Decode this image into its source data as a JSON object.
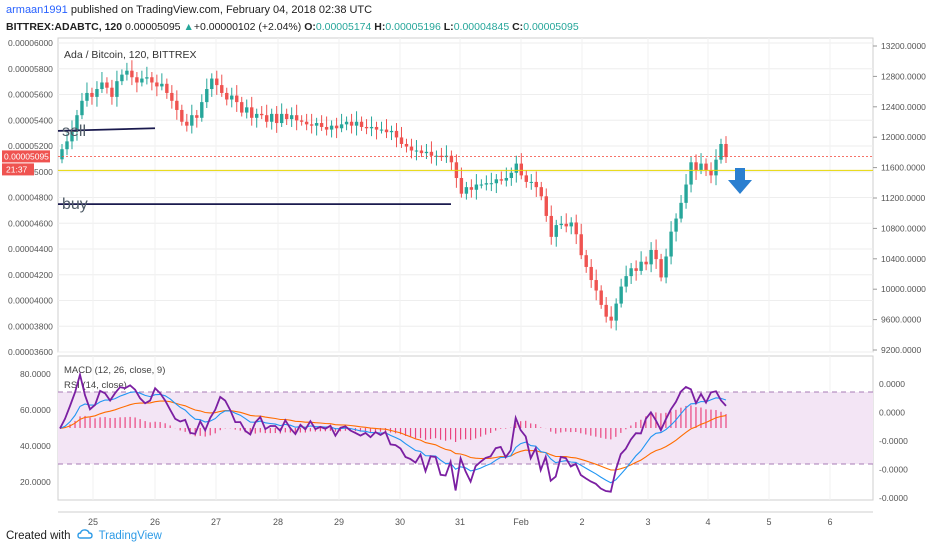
{
  "header": {
    "user": "armaan1991",
    "published": "published on TradingView.com, February 04, 2018 02:38 UTC",
    "symbol": "BITTREX:ADABTC, 120",
    "last": "0.00005095",
    "change": "+0.00000102 (+2.04%)",
    "o_label": "O:",
    "o": "0.00005174",
    "h_label": "H:",
    "h": "0.00005196",
    "l_label": "L:",
    "l": "0.00004845",
    "c_label": "C:",
    "c": "0.00005095"
  },
  "footer": {
    "created_with": "Created with",
    "brand": "TradingView"
  },
  "colors": {
    "up": "#26a69a",
    "down": "#ef5350",
    "rsi": "#7b1fa2",
    "macd_line": "#2196f3",
    "signal_line": "#ff6d00",
    "hist": "#e91e63",
    "rsi_band": "#f3e5f5",
    "price_line": "#f44336",
    "yellow_line": "#e6d600",
    "annotation_line": "#1a1a4e",
    "arrow": "#2a7fd0"
  },
  "chart_data": [
    {
      "type": "candlestick",
      "title": "Ada / Bitcoin, 120, BITTREX",
      "left_axis": {
        "ylim": [
          3.6e-05,
          6e-05
        ],
        "ticks": [
          "0.00006000",
          "0.00005800",
          "0.00005600",
          "0.00005400",
          "0.00005200",
          "0.00005000",
          "0.00004800",
          "0.00004600",
          "0.00004400",
          "0.00004200",
          "0.00004000",
          "0.00003800",
          "0.00003600"
        ]
      },
      "right_axis": {
        "ylim": [
          9200,
          13200
        ],
        "ticks": [
          "13200.0000",
          "12800.0000",
          "12400.0000",
          "12000.0000",
          "11600.0000",
          "11200.0000",
          "10800.0000",
          "10400.0000",
          "10000.0000",
          "9600.0000",
          "9200.0000"
        ]
      },
      "x_ticks": [
        "25",
        "26",
        "27",
        "28",
        "29",
        "30",
        "31",
        "Feb",
        "2",
        "3",
        "4",
        "5",
        "6"
      ],
      "price_label": "0.00005095",
      "time_label": "21:37",
      "annotations": [
        {
          "text": "sell",
          "from": [
            "26",
            5.31e-05
          ],
          "to": [
            "5.6",
            5.29e-05
          ]
        },
        {
          "text": "buy",
          "from": [
            "30.85",
            4.73e-05
          ],
          "to": [
            "5.05",
            4.73e-05
          ]
        }
      ],
      "close_series": [
        5.15e-05,
        5.21e-05,
        5.29e-05,
        5.41e-05,
        5.52e-05,
        5.58e-05,
        5.55e-05,
        5.61e-05,
        5.66e-05,
        5.62e-05,
        5.55e-05,
        5.67e-05,
        5.72e-05,
        5.75e-05,
        5.7e-05,
        5.66e-05,
        5.69e-05,
        5.7e-05,
        5.66e-05,
        5.63e-05,
        5.65e-05,
        5.58e-05,
        5.52e-05,
        5.45e-05,
        5.36e-05,
        5.33e-05,
        5.41e-05,
        5.39e-05,
        5.51e-05,
        5.61e-05,
        5.69e-05,
        5.64e-05,
        5.58e-05,
        5.53e-05,
        5.56e-05,
        5.51e-05,
        5.43e-05,
        5.47e-05,
        5.39e-05,
        5.42e-05,
        5.41e-05,
        5.36e-05,
        5.42e-05,
        5.35e-05,
        5.42e-05,
        5.38e-05,
        5.41e-05,
        5.37e-05,
        5.36e-05,
        5.34e-05,
        5.33e-05,
        5.35e-05,
        5.32e-05,
        5.3e-05,
        5.33e-05,
        5.31e-05,
        5.34e-05,
        5.36e-05,
        5.33e-05,
        5.36e-05,
        5.32e-05,
        5.31e-05,
        5.32e-05,
        5.3e-05,
        5.3e-05,
        5.28e-05,
        5.29e-05,
        5.24e-05,
        5.19e-05,
        5.17e-05,
        5.14e-05,
        5.14e-05,
        5.12e-05,
        5.13e-05,
        5.1e-05,
        5.1e-05,
        5.09e-05,
        5.1e-05,
        5.05e-05,
        4.93e-05,
        4.81e-05,
        4.86e-05,
        4.84e-05,
        4.88e-05,
        4.88e-05,
        4.89e-05,
        4.89e-05,
        4.92e-05,
        4.91e-05,
        4.93e-05,
        4.97e-05,
        5.04e-05,
        4.95e-05,
        4.9e-05,
        4.9e-05,
        4.86e-05,
        4.79e-05,
        4.64e-05,
        4.48e-05,
        4.57e-05,
        4.58e-05,
        4.56e-05,
        4.59e-05,
        4.5e-05,
        4.34e-05,
        4.25e-05,
        4.15e-05,
        4.07e-05,
        3.96e-05,
        3.87e-05,
        3.84e-05,
        3.97e-05,
        4.1e-05,
        4.18e-05,
        4.24e-05,
        4.22e-05,
        4.29e-05,
        4.27e-05,
        4.38e-05,
        4.31e-05,
        4.17e-05,
        4.33e-05,
        4.52e-05,
        4.62e-05,
        4.74e-05,
        4.88e-05,
        5.05e-05,
        4.99e-05,
        5.04e-05,
        4.99e-05,
        4.95e-05,
        5.07e-05,
        5.19e-05,
        5.09e-05
      ]
    },
    {
      "type": "line",
      "title": "MACD (12, 26, close, 9)",
      "series_labels": [
        "RSI (14, close)"
      ],
      "left_axis": {
        "ticks": [
          "80.0000",
          "60.0000",
          "40.0000",
          "20.0000"
        ]
      },
      "right_axis": {
        "ticks": [
          "0.0000",
          "0.0000",
          "-0.0000",
          "-0.0000",
          "-0.0000"
        ]
      },
      "rsi_band": [
        30,
        70
      ],
      "rsi_series": [
        49.8,
        55.1,
        62.2,
        69.7,
        79.6,
        68.2,
        60.4,
        62.9,
        70.6,
        69.3,
        65.3,
        69.4,
        72.7,
        72.1,
        73.7,
        71.3,
        66.5,
        63.7,
        65.2,
        72.1,
        69.3,
        65.2,
        60.1,
        55.1,
        53.6,
        54.5,
        47.3,
        46.7,
        53.7,
        48.7,
        55.6,
        60.1,
        67.3,
        65.2,
        59.9,
        53.3,
        53.3,
        48.4,
        46.4,
        53.1,
        56.1,
        49.4,
        51.1,
        51.1,
        48.4,
        54.3,
        49.9,
        46.6,
        51.8,
        49.2,
        53.8,
        49.4,
        50.6,
        49.6,
        51.2,
        45.7,
        50.1,
        50.9,
        48.6,
        47.3,
        45.8,
        47.3,
        44.9,
        47.7,
        46.1,
        47.8,
        40.9,
        40.5,
        38.6,
        33.9,
        32.7,
        30.8,
        35.3,
        26.0,
        34.3,
        33.9,
        24.0,
        23.6,
        31.3,
        15.3,
        33.1,
        25.9,
        20.2,
        28.8,
        31.2,
        33.4,
        34.2,
        38.8,
        39.5,
        33.8,
        37.6,
        55.6,
        48.8,
        45.3,
        33.2,
        38.7,
        26.6,
        34.0,
        20.7,
        23.0,
        33.9,
        33.3,
        28.6,
        30.1,
        23.9,
        22.0,
        20.3,
        19.0,
        16.4,
        15.0,
        14.6,
        26.8,
        35.5,
        38.5,
        43.6,
        47.1,
        47.0,
        55.1,
        58.7,
        54.2,
        48.8,
        54.9,
        60.4,
        64.5,
        70.3,
        72.8,
        71.5,
        63.8,
        68.9,
        64.1,
        69.8,
        70.4,
        65.4,
        62.3
      ]
    }
  ]
}
